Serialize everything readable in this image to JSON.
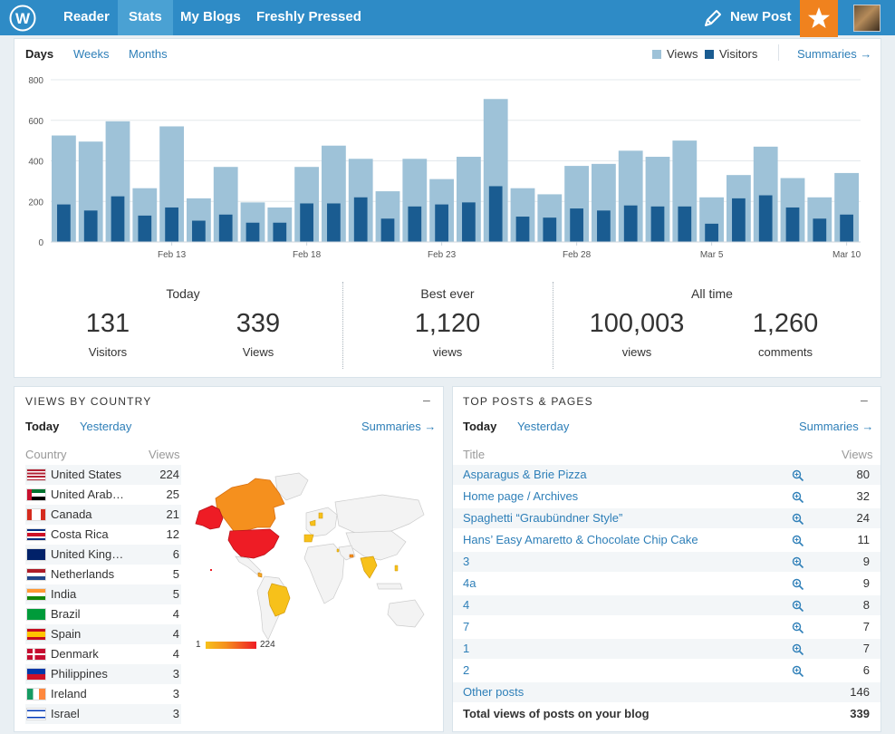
{
  "topbar": {
    "nav": [
      "Reader",
      "Stats",
      "My Blogs",
      "Freshly Pressed"
    ],
    "active": "Stats",
    "new_post": "New Post"
  },
  "stats_tabs": {
    "days": "Days",
    "weeks": "Weeks",
    "months": "Months"
  },
  "legend": {
    "views": "Views",
    "visitors": "Visitors",
    "summaries": "Summaries →"
  },
  "colors": {
    "views": "#9ec2d8",
    "visitors": "#1a5c91",
    "accent": "#2e8bc6",
    "star": "#f0821e"
  },
  "chart_data": {
    "type": "bar",
    "y_ticks": [
      "0",
      "200",
      "400",
      "600",
      "800"
    ],
    "ylim": [
      0,
      800
    ],
    "x_tick_labels": [
      {
        "label": "Feb 13",
        "index": 4
      },
      {
        "label": "Feb 18",
        "index": 9
      },
      {
        "label": "Feb 23",
        "index": 14
      },
      {
        "label": "Feb 28",
        "index": 19
      },
      {
        "label": "Mar 5",
        "index": 24
      },
      {
        "label": "Mar 10",
        "index": 29
      }
    ],
    "series": [
      {
        "name": "Views",
        "values": [
          525,
          495,
          595,
          265,
          570,
          215,
          370,
          195,
          170,
          370,
          475,
          410,
          250,
          410,
          310,
          420,
          705,
          265,
          235,
          375,
          385,
          450,
          420,
          500,
          220,
          330,
          470,
          315,
          220,
          340
        ]
      },
      {
        "name": "Visitors",
        "values": [
          185,
          155,
          225,
          130,
          170,
          105,
          135,
          95,
          95,
          190,
          190,
          220,
          115,
          175,
          185,
          195,
          275,
          125,
          120,
          165,
          155,
          180,
          175,
          175,
          90,
          215,
          230,
          170,
          115,
          135
        ]
      }
    ]
  },
  "summary": {
    "today": {
      "heading": "Today",
      "visitors": "131",
      "visitors_label": "Visitors",
      "views": "339",
      "views_label": "Views"
    },
    "best": {
      "heading": "Best ever",
      "views": "1,120",
      "views_label": "views"
    },
    "alltime": {
      "heading": "All time",
      "views": "100,003",
      "views_label": "views",
      "comments": "1,260",
      "comments_label": "comments"
    }
  },
  "country_card": {
    "title": "VIEWS BY COUNTRY",
    "minus": "–",
    "today": "Today",
    "yesterday": "Yesterday",
    "summaries": "Summaries →",
    "col_country": "Country",
    "col_views": "Views",
    "rows": [
      {
        "name": "United States",
        "views": "224",
        "flag": "us"
      },
      {
        "name": "United Arab…",
        "views": "25",
        "flag": "ae"
      },
      {
        "name": "Canada",
        "views": "21",
        "flag": "ca"
      },
      {
        "name": "Costa Rica",
        "views": "12",
        "flag": "cr"
      },
      {
        "name": "United King…",
        "views": "6",
        "flag": "gb"
      },
      {
        "name": "Netherlands",
        "views": "5",
        "flag": "nl"
      },
      {
        "name": "India",
        "views": "5",
        "flag": "in"
      },
      {
        "name": "Brazil",
        "views": "4",
        "flag": "br"
      },
      {
        "name": "Spain",
        "views": "4",
        "flag": "es"
      },
      {
        "name": "Denmark",
        "views": "4",
        "flag": "dk"
      },
      {
        "name": "Philippines",
        "views": "3",
        "flag": "ph"
      },
      {
        "name": "Ireland",
        "views": "3",
        "flag": "ie"
      },
      {
        "name": "Israel",
        "views": "3",
        "flag": "il"
      }
    ],
    "map_scale_min": "1",
    "map_scale_max": "224"
  },
  "posts_card": {
    "title": "TOP POSTS & PAGES",
    "minus": "–",
    "today": "Today",
    "yesterday": "Yesterday",
    "summaries": "Summaries →",
    "col_title": "Title",
    "col_views": "Views",
    "rows": [
      {
        "title": "Asparagus & Brie Pizza",
        "views": "80"
      },
      {
        "title": "Home page / Archives",
        "views": "32"
      },
      {
        "title": "Spaghetti “Graubündner Style”",
        "views": "24"
      },
      {
        "title": "Hans’ Easy Amaretto & Chocolate Chip Cake",
        "views": "11"
      },
      {
        "title": "3",
        "views": "9"
      },
      {
        "title": "4a",
        "views": "9"
      },
      {
        "title": "4",
        "views": "8"
      },
      {
        "title": "7",
        "views": "7"
      },
      {
        "title": "1",
        "views": "7"
      },
      {
        "title": "2",
        "views": "6"
      }
    ],
    "other": {
      "title": "Other posts",
      "views": "146"
    },
    "total": {
      "title": "Total views of posts on your blog",
      "views": "339"
    }
  }
}
